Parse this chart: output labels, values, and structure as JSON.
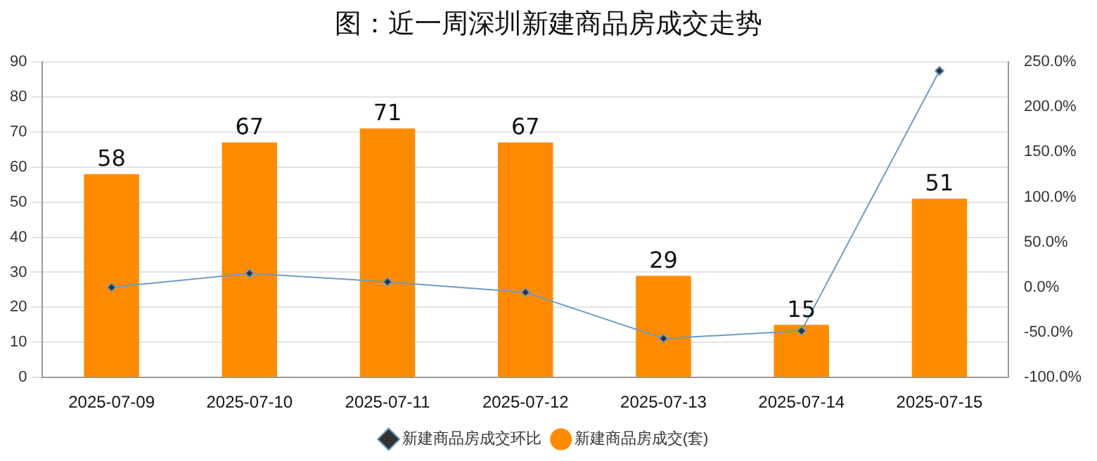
{
  "chart_data": {
    "type": "bar",
    "title": "图：近一周深圳新建商品房成交走势",
    "categories": [
      "2025-07-09",
      "2025-07-10",
      "2025-07-11",
      "2025-07-12",
      "2025-07-13",
      "2025-07-14",
      "2025-07-15"
    ],
    "series": [
      {
        "name": "新建商品房成交(套)",
        "color": "#ff8c00",
        "values": [
          58,
          67,
          71,
          67,
          29,
          15,
          51
        ],
        "value_labels": [
          "58",
          "67",
          "71",
          "67",
          "29",
          "15",
          "51"
        ]
      },
      {
        "name": "新建商品房成交环比",
        "type": "line",
        "axis": "y2",
        "color": "#6b9bc8",
        "marker": "diamond",
        "values": [
          0,
          15.5,
          6.0,
          -5.6,
          -56.7,
          -48.3,
          240
        ]
      }
    ],
    "ylim": [
      0,
      90
    ],
    "yticks": [
      0,
      10,
      20,
      30,
      40,
      50,
      60,
      70,
      80,
      90
    ],
    "y2lim": [
      -100,
      250
    ],
    "y2ticks": [
      {
        "value": -100,
        "label": "-100.0%"
      },
      {
        "value": -50,
        "label": "-50.0%"
      },
      {
        "value": 0,
        "label": "0.0%"
      },
      {
        "value": 50,
        "label": "50.0%"
      },
      {
        "value": 100,
        "label": "100.0%"
      },
      {
        "value": 150,
        "label": "150.0%"
      },
      {
        "value": 200,
        "label": "200.0%"
      },
      {
        "value": 250,
        "label": "250.0%"
      }
    ],
    "grid": "y",
    "legend": "bottom"
  }
}
